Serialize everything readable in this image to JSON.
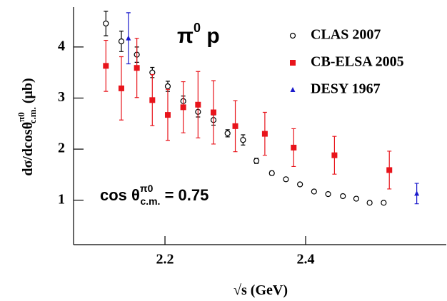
{
  "chart_data": {
    "type": "scatter",
    "annotation_title": {
      "main": "π",
      "sup": "0",
      "rest": " p"
    },
    "annotation_angle": {
      "main": "cos θ",
      "sup": "π0",
      "sub": "c.m.",
      "rest": " = 0.75"
    },
    "xlabel": {
      "root": "√",
      "main": "s (GeV)"
    },
    "ylabel": {
      "main": "dσ/dcosθ",
      "sup": "π0",
      "sub": "c.m.",
      "unit": " (μb)"
    },
    "xlim": [
      2.07,
      2.6
    ],
    "ylim": [
      0.13,
      4.78
    ],
    "xticks": [
      2.2,
      2.4
    ],
    "yticks": [
      1,
      2,
      3,
      4
    ],
    "series": [
      {
        "name": "CLAS 2007",
        "color": "#000000",
        "marker": "circle",
        "x": [
          2.116,
          2.138,
          2.16,
          2.182,
          2.204,
          2.226,
          2.247,
          2.269,
          2.289,
          2.311,
          2.33,
          2.352,
          2.372,
          2.392,
          2.412,
          2.432,
          2.453,
          2.472,
          2.491,
          2.511
        ],
        "values": [
          4.46,
          4.11,
          3.85,
          3.5,
          3.23,
          2.94,
          2.73,
          2.57,
          2.31,
          2.18,
          1.77,
          1.53,
          1.41,
          1.31,
          1.17,
          1.12,
          1.08,
          1.03,
          0.95,
          0.95
        ],
        "errors": [
          0.24,
          0.2,
          0.15,
          0.1,
          0.1,
          0.1,
          0.1,
          0.1,
          0.07,
          0.1,
          0.05,
          0.04,
          0.03,
          0.03,
          0.03,
          0.03,
          0.03,
          0.03,
          0.03,
          0.03
        ]
      },
      {
        "name": "CB-ELSA 2005",
        "color": "#e8141b",
        "marker": "square",
        "x": [
          2.116,
          2.138,
          2.16,
          2.182,
          2.204,
          2.226,
          2.247,
          2.269,
          2.3,
          2.342,
          2.383,
          2.441,
          2.519
        ],
        "values": [
          3.63,
          3.19,
          3.59,
          2.96,
          2.67,
          2.82,
          2.87,
          2.72,
          2.45,
          2.3,
          2.03,
          1.88,
          1.59
        ],
        "errors": [
          0.5,
          0.62,
          0.58,
          0.5,
          0.5,
          0.5,
          0.65,
          0.62,
          0.5,
          0.42,
          0.37,
          0.37,
          0.37
        ]
      },
      {
        "name": "DESY 1967",
        "color": "#1a1acc",
        "marker": "triangle",
        "x": [
          2.148,
          2.558
        ],
        "values": [
          4.17,
          1.13
        ],
        "errors": [
          0.5,
          0.2
        ]
      }
    ]
  }
}
